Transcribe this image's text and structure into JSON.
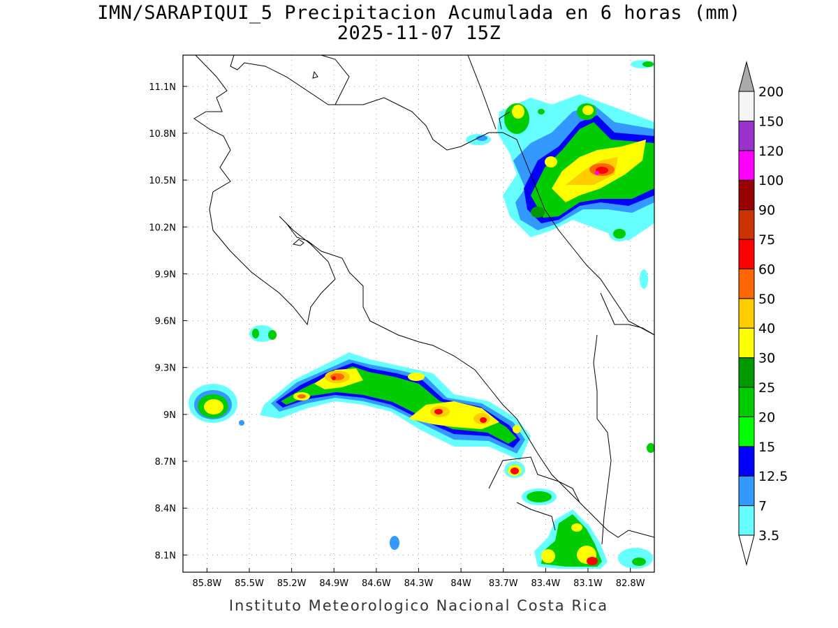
{
  "title": {
    "line1": "IMN/SARAPIQUI_5 Precipitacion Acumulada en 6 horas (mm)",
    "line2": "2025-11-07 15Z"
  },
  "footer": "Instituto Meteorologico Nacional Costa Rica",
  "axes": {
    "x_labels": [
      "85.8W",
      "85.5W",
      "85.2W",
      "84.9W",
      "84.6W",
      "84.3W",
      "84W",
      "83.7W",
      "83.4W",
      "83.1W",
      "82.8W"
    ],
    "y_labels": [
      "11.1N",
      "10.8N",
      "10.5N",
      "10.2N",
      "9.9N",
      "9.6N",
      "9.3N",
      "9N",
      "8.7N",
      "8.4N",
      "8.1N"
    ],
    "x_range": [
      -85.97,
      -82.63
    ],
    "y_range": [
      7.99,
      11.3
    ],
    "grid": true
  },
  "colorbar": {
    "levels": [
      {
        "label": "3.5",
        "color": "#66ffff"
      },
      {
        "label": "7",
        "color": "#3399ff"
      },
      {
        "label": "12.5",
        "color": "#0000ff"
      },
      {
        "label": "15",
        "color": "#00ff00"
      },
      {
        "label": "20",
        "color": "#00cc00"
      },
      {
        "label": "25",
        "color": "#009900"
      },
      {
        "label": "30",
        "color": "#ffff00"
      },
      {
        "label": "40",
        "color": "#ffcc00"
      },
      {
        "label": "50",
        "color": "#ff6600"
      },
      {
        "label": "60",
        "color": "#ff0000"
      },
      {
        "label": "75",
        "color": "#cc3300"
      },
      {
        "label": "90",
        "color": "#990000"
      },
      {
        "label": "100",
        "color": "#ff00ff"
      },
      {
        "label": "120",
        "color": "#9933cc"
      },
      {
        "label": "150",
        "color": "#f5f5f5"
      },
      {
        "label": "200",
        "color": "#aaaaaa"
      }
    ]
  }
}
